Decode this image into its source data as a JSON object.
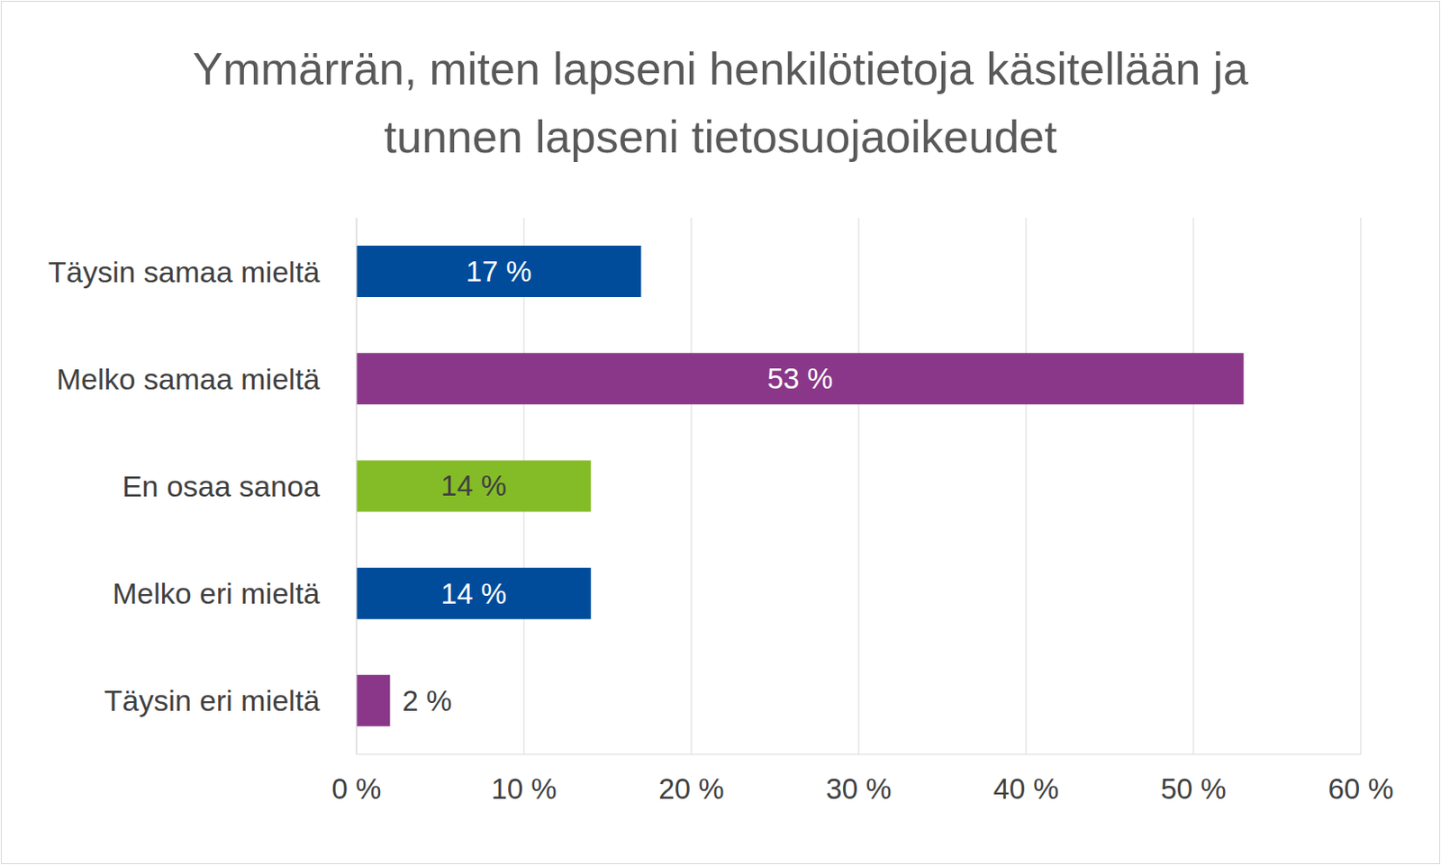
{
  "chart_data": {
    "type": "bar",
    "title": "Ymmärrän, miten lapseni henkilötietoja käsitellään ja tunnen lapseni tietosuojaoikeudet",
    "orientation": "horizontal",
    "categories": [
      "Täysin samaa mieltä",
      "Melko samaa mieltä",
      "En osaa sanoa",
      "Melko eri mieltä",
      "Täysin eri mieltä"
    ],
    "values": [
      17,
      53,
      14,
      14,
      2
    ],
    "value_labels": [
      "17 %",
      "53 %",
      "14 %",
      "14 %",
      "2 %"
    ],
    "colors": [
      "#004C9B",
      "#8A3789",
      "#84BC27",
      "#004C9B",
      "#8A3789"
    ],
    "xlim": [
      0,
      60
    ],
    "xticks": [
      {
        "value": 0,
        "label": "0 %"
      },
      {
        "value": 10,
        "label": "10 %"
      },
      {
        "value": 20,
        "label": "20 %"
      },
      {
        "value": 30,
        "label": "30 %"
      },
      {
        "value": 40,
        "label": "40 %"
      },
      {
        "value": 50,
        "label": "50 %"
      },
      {
        "value": 60,
        "label": "60 %"
      }
    ],
    "grid": true,
    "data_labels": true
  }
}
